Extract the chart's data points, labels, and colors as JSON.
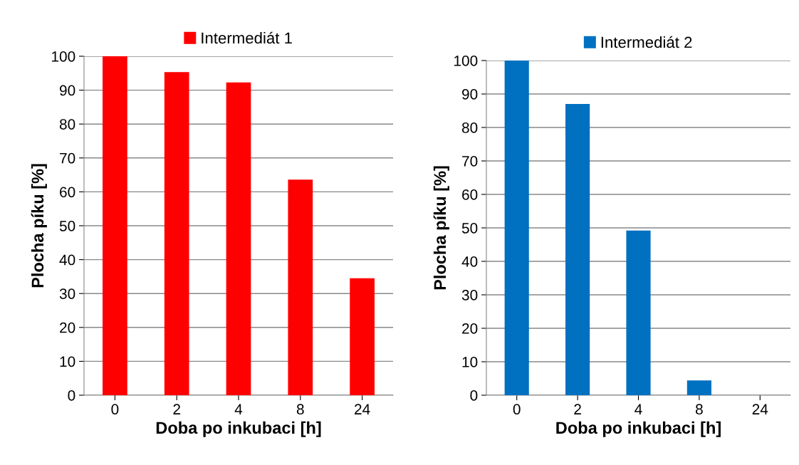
{
  "chart_data": [
    {
      "type": "bar",
      "categories": [
        "0",
        "2",
        "4",
        "8",
        "24"
      ],
      "xlabel": "Doba po inkubaci [h]",
      "ylabel": "Plocha píku [%]",
      "ylim": [
        0,
        100
      ],
      "yticks": [
        0,
        10,
        20,
        30,
        40,
        50,
        60,
        70,
        80,
        90,
        100
      ],
      "grid": "y",
      "legend": "top",
      "series": [
        {
          "name": "Intermediát 1",
          "color": "#ff0000",
          "values": [
            100,
            95.3,
            92.3,
            63.6,
            34.5
          ]
        }
      ]
    },
    {
      "type": "bar",
      "categories": [
        "0",
        "2",
        "4",
        "8",
        "24"
      ],
      "xlabel": "Doba po inkubaci [h]",
      "ylabel": "Plocha píku [%]",
      "ylim": [
        0,
        100
      ],
      "yticks": [
        0,
        10,
        20,
        30,
        40,
        50,
        60,
        70,
        80,
        90,
        100
      ],
      "grid": "y",
      "legend": "top",
      "series": [
        {
          "name": "Intermediát 2",
          "color": "#0070c0",
          "values": [
            100,
            87,
            49.2,
            4.4,
            0
          ]
        }
      ]
    }
  ]
}
